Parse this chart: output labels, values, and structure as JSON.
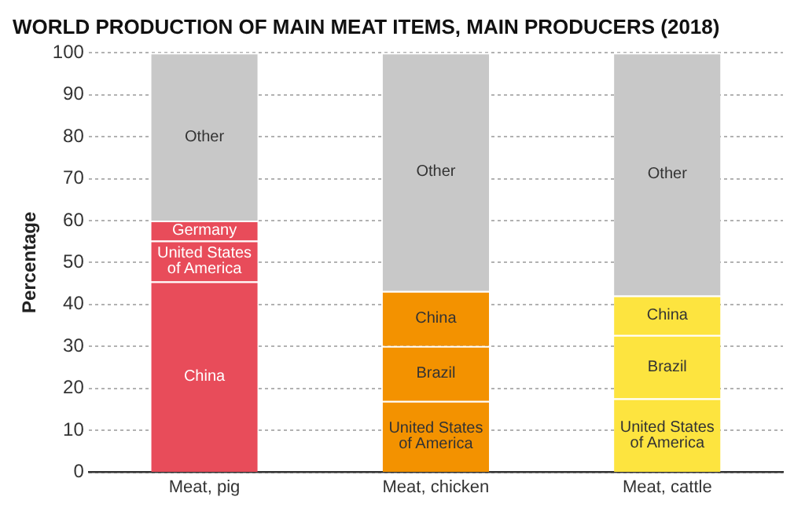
{
  "chart_data": {
    "type": "bar",
    "title": "WORLD PRODUCTION OF MAIN MEAT ITEMS, MAIN PRODUCERS (2018)",
    "ylabel": "Percentage",
    "categories": [
      "Meat, pig",
      "Meat, chicken",
      "Meat, cattle"
    ],
    "stacked": true,
    "series": [
      {
        "colors": [
          "#e84c5a",
          "#f39200",
          "#fde43f"
        ],
        "values": [
          45.5,
          17,
          17.6
        ],
        "value_labels": [
          "China",
          "United States of America",
          "United States of America"
        ]
      },
      {
        "colors": [
          "#e84c5a",
          "#f39200",
          "#fde43f"
        ],
        "values": [
          9.7,
          13.1,
          15.1
        ],
        "value_labels": [
          "United States of America",
          "Brazil",
          "Brazil"
        ]
      },
      {
        "colors": [
          "#e84c5a",
          "#f39200",
          "#fde43f"
        ],
        "values": [
          4.8,
          13.1,
          9.4
        ],
        "value_labels": [
          "Germany",
          "China",
          "China"
        ]
      },
      {
        "colors": [
          "#c8c8c8",
          "#c8c8c8",
          "#c8c8c8"
        ],
        "values": [
          40,
          56.8,
          57.9
        ],
        "value_labels": [
          "Other",
          "Other",
          "Other"
        ]
      }
    ],
    "ylim": [
      0,
      100
    ],
    "yticks": [
      0,
      10,
      20,
      30,
      40,
      50,
      60,
      70,
      80,
      90,
      100
    ],
    "grid": "y",
    "legend": false
  }
}
